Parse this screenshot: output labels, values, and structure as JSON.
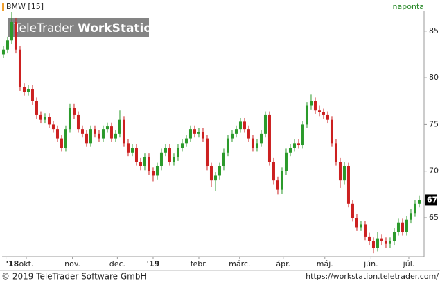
{
  "chart_data": {
    "type": "candlestick",
    "title": "BMW [15]",
    "interval": "naponta",
    "watermark": {
      "brand": "TeleTrader",
      "product": "WorkStation"
    },
    "last_label": "67",
    "footer": {
      "copyright": "© 2019 TeleTrader Software GmbH",
      "url": "https://workstation.teletrader.com/"
    },
    "up_color": "#2b9a2b",
    "down_color": "#cc2020",
    "xlim": [
      -0.33,
      101.17
    ],
    "xticks": [
      {
        "value": 0.6,
        "label": "'18"
      },
      {
        "value": 5.5,
        "label": "okt."
      },
      {
        "value": 16.6,
        "label": "nov."
      },
      {
        "value": 27.4,
        "label": "dec."
      },
      {
        "value": 36,
        "label": "'19"
      },
      {
        "value": 47,
        "label": "febr."
      },
      {
        "value": 56.8,
        "label": "márc."
      },
      {
        "value": 67.3,
        "label": "ápr."
      },
      {
        "value": 77.3,
        "label": "máj."
      },
      {
        "value": 88.4,
        "label": "jún."
      },
      {
        "value": 97.5,
        "label": "júl."
      }
    ],
    "ylim": [
      60.84,
      87.14
    ],
    "yticks": [
      65,
      70,
      75,
      80,
      85
    ],
    "open": [
      82.5,
      83.0,
      84.0,
      86.0,
      83.0,
      79.0,
      78.5,
      78.8,
      77.5,
      76.0,
      75.5,
      75.8,
      75.0,
      74.5,
      73.5,
      72.5,
      74.5,
      76.8,
      76.0,
      74.5,
      74.0,
      73.0,
      74.5,
      74.0,
      73.5,
      74.5,
      74.8,
      73.5,
      74.0,
      75.5,
      73.0,
      72.0,
      72.5,
      71.0,
      70.5,
      71.5,
      70.0,
      69.5,
      70.5,
      72.0,
      72.5,
      71.0,
      71.5,
      72.5,
      73.0,
      73.5,
      74.5,
      74.0,
      74.2,
      73.5,
      70.5,
      69.0,
      69.5,
      70.5,
      72.0,
      73.5,
      74.0,
      74.5,
      75.3,
      74.5,
      73.5,
      72.5,
      73.0,
      74.0,
      76.0,
      71.0,
      69.0,
      68.0,
      70.0,
      72.0,
      72.5,
      73.0,
      72.8,
      75.0,
      77.0,
      77.5,
      76.5,
      76.3,
      76.0,
      75.5,
      73.0,
      71.0,
      69.0,
      70.5,
      66.5,
      65.0,
      64.0,
      64.3,
      63.0,
      62.5,
      61.8,
      62.8,
      62.5,
      62.2,
      62.5,
      63.5,
      64.5,
      63.5,
      64.8,
      65.5,
      66.5
    ],
    "high": [
      83.4,
      84.4,
      87.0,
      86.4,
      83.4,
      79.4,
      79.2,
      79.2,
      77.9,
      76.4,
      76.2,
      76.2,
      75.4,
      74.9,
      73.9,
      74.9,
      77.2,
      77.2,
      76.4,
      74.9,
      74.4,
      74.9,
      74.9,
      74.4,
      74.9,
      75.2,
      75.2,
      74.4,
      76.5,
      75.9,
      73.4,
      72.9,
      72.9,
      71.4,
      71.9,
      71.9,
      70.4,
      70.9,
      72.4,
      72.9,
      72.9,
      71.9,
      72.9,
      73.4,
      73.9,
      74.9,
      74.9,
      74.6,
      74.6,
      73.9,
      70.9,
      69.9,
      70.9,
      72.4,
      73.9,
      74.4,
      74.9,
      75.7,
      75.7,
      74.9,
      73.9,
      73.4,
      74.4,
      76.4,
      76.4,
      71.4,
      69.4,
      70.4,
      72.4,
      72.9,
      73.4,
      73.4,
      75.4,
      77.4,
      78.2,
      77.9,
      77.0,
      76.7,
      76.4,
      75.9,
      73.4,
      71.4,
      71.0,
      70.9,
      66.9,
      65.4,
      64.7,
      64.7,
      63.4,
      62.9,
      63.5,
      63.2,
      62.9,
      62.9,
      63.9,
      64.9,
      64.9,
      65.2,
      65.9,
      66.9,
      67.4
    ],
    "low": [
      82.1,
      82.6,
      83.6,
      82.6,
      78.6,
      78.1,
      78.1,
      77.1,
      75.6,
      75.1,
      75.1,
      74.6,
      74.1,
      73.1,
      72.1,
      72.1,
      74.1,
      75.6,
      74.1,
      73.6,
      72.6,
      72.6,
      73.6,
      73.1,
      73.1,
      74.1,
      73.1,
      73.1,
      73.6,
      72.6,
      71.6,
      71.6,
      70.6,
      70.1,
      70.1,
      69.6,
      68.9,
      69.1,
      70.1,
      71.6,
      70.6,
      70.6,
      71.1,
      72.1,
      72.6,
      73.1,
      73.6,
      73.6,
      73.1,
      70.1,
      68.3,
      67.9,
      69.1,
      70.1,
      71.6,
      73.1,
      73.6,
      74.1,
      74.1,
      73.1,
      72.1,
      72.1,
      72.6,
      73.6,
      70.6,
      68.6,
      67.5,
      67.6,
      69.6,
      71.6,
      72.1,
      72.4,
      72.4,
      74.6,
      76.6,
      76.1,
      75.9,
      75.6,
      75.1,
      72.6,
      70.6,
      68.2,
      68.6,
      66.1,
      64.6,
      63.6,
      63.6,
      62.6,
      62.1,
      61.2,
      61.4,
      62.1,
      61.8,
      61.8,
      62.1,
      63.1,
      63.1,
      63.1,
      64.4,
      65.1,
      66.1
    ],
    "close": [
      83.0,
      84.0,
      86.0,
      83.0,
      79.0,
      78.5,
      78.8,
      77.5,
      76.0,
      75.5,
      75.8,
      75.0,
      74.5,
      73.5,
      72.5,
      74.5,
      76.8,
      76.0,
      74.5,
      74.0,
      73.0,
      74.5,
      74.0,
      73.5,
      74.5,
      74.8,
      73.5,
      74.0,
      75.5,
      73.0,
      72.0,
      72.5,
      71.0,
      70.5,
      71.5,
      70.0,
      69.5,
      70.5,
      72.0,
      72.5,
      71.0,
      71.5,
      72.5,
      73.0,
      73.5,
      74.5,
      74.0,
      74.2,
      73.5,
      70.5,
      69.0,
      69.5,
      70.5,
      72.0,
      73.5,
      74.0,
      74.5,
      75.3,
      74.5,
      73.5,
      72.5,
      73.0,
      74.0,
      76.0,
      71.0,
      69.0,
      68.0,
      70.0,
      72.0,
      72.5,
      73.0,
      72.8,
      75.0,
      77.0,
      77.5,
      76.5,
      76.3,
      76.0,
      75.5,
      73.0,
      71.0,
      69.0,
      70.5,
      66.5,
      65.0,
      64.0,
      64.3,
      63.0,
      62.5,
      61.8,
      62.8,
      62.5,
      62.2,
      62.5,
      63.5,
      64.5,
      63.5,
      64.8,
      65.5,
      66.5,
      66.9
    ]
  }
}
